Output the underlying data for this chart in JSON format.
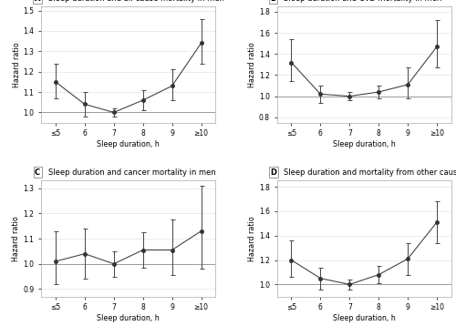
{
  "x_labels": [
    "≤5",
    "6",
    "7",
    "8",
    "9",
    "≥10"
  ],
  "x_vals": [
    0,
    1,
    2,
    3,
    4,
    5
  ],
  "A_title": "Sleep duration and all-cause mortality in men",
  "A_y": [
    1.15,
    1.04,
    1.0,
    1.06,
    1.13,
    1.34
  ],
  "A_yerr_lo": [
    0.08,
    0.06,
    0.02,
    0.05,
    0.07,
    0.1
  ],
  "A_yerr_hi": [
    0.09,
    0.06,
    0.02,
    0.05,
    0.08,
    0.12
  ],
  "A_ylim": [
    0.95,
    1.52
  ],
  "A_yticks": [
    1.0,
    1.1,
    1.2,
    1.3,
    1.4,
    1.5
  ],
  "B_title": "Sleep duration and CVD mortality in men",
  "B_y": [
    1.32,
    1.02,
    1.0,
    1.04,
    1.11,
    1.47
  ],
  "B_yerr_lo": [
    0.18,
    0.08,
    0.04,
    0.06,
    0.13,
    0.2
  ],
  "B_yerr_hi": [
    0.22,
    0.08,
    0.04,
    0.06,
    0.16,
    0.25
  ],
  "B_ylim": [
    0.75,
    1.85
  ],
  "B_yticks": [
    0.8,
    1.0,
    1.2,
    1.4,
    1.6,
    1.8
  ],
  "C_title": "Sleep duration and cancer mortality in men",
  "C_y": [
    1.01,
    1.04,
    1.0,
    1.055,
    1.055,
    1.13
  ],
  "C_yerr_lo": [
    0.09,
    0.1,
    0.05,
    0.07,
    0.1,
    0.15
  ],
  "C_yerr_hi": [
    0.12,
    0.1,
    0.05,
    0.07,
    0.12,
    0.18
  ],
  "C_ylim": [
    0.87,
    1.33
  ],
  "C_yticks": [
    0.9,
    1.0,
    1.1,
    1.2,
    1.3
  ],
  "D_title": "Sleep duration and mortality from other causes in men",
  "D_y": [
    1.2,
    1.05,
    1.0,
    1.08,
    1.21,
    1.51
  ],
  "D_yerr_lo": [
    0.14,
    0.09,
    0.04,
    0.07,
    0.13,
    0.17
  ],
  "D_yerr_hi": [
    0.16,
    0.09,
    0.04,
    0.07,
    0.13,
    0.17
  ],
  "D_ylim": [
    0.9,
    1.85
  ],
  "D_yticks": [
    1.0,
    1.2,
    1.4,
    1.6,
    1.8
  ],
  "xlabel": "Sleep duration, h",
  "ylabel": "Hazard ratio",
  "line_color": "#444444",
  "marker_color": "#333333",
  "ref_line_color": "#999999",
  "grid_color": "#dddddd",
  "bg_color": "#ffffff",
  "title_fontsize": 6.0,
  "label_fontsize": 5.8,
  "tick_fontsize": 5.5
}
